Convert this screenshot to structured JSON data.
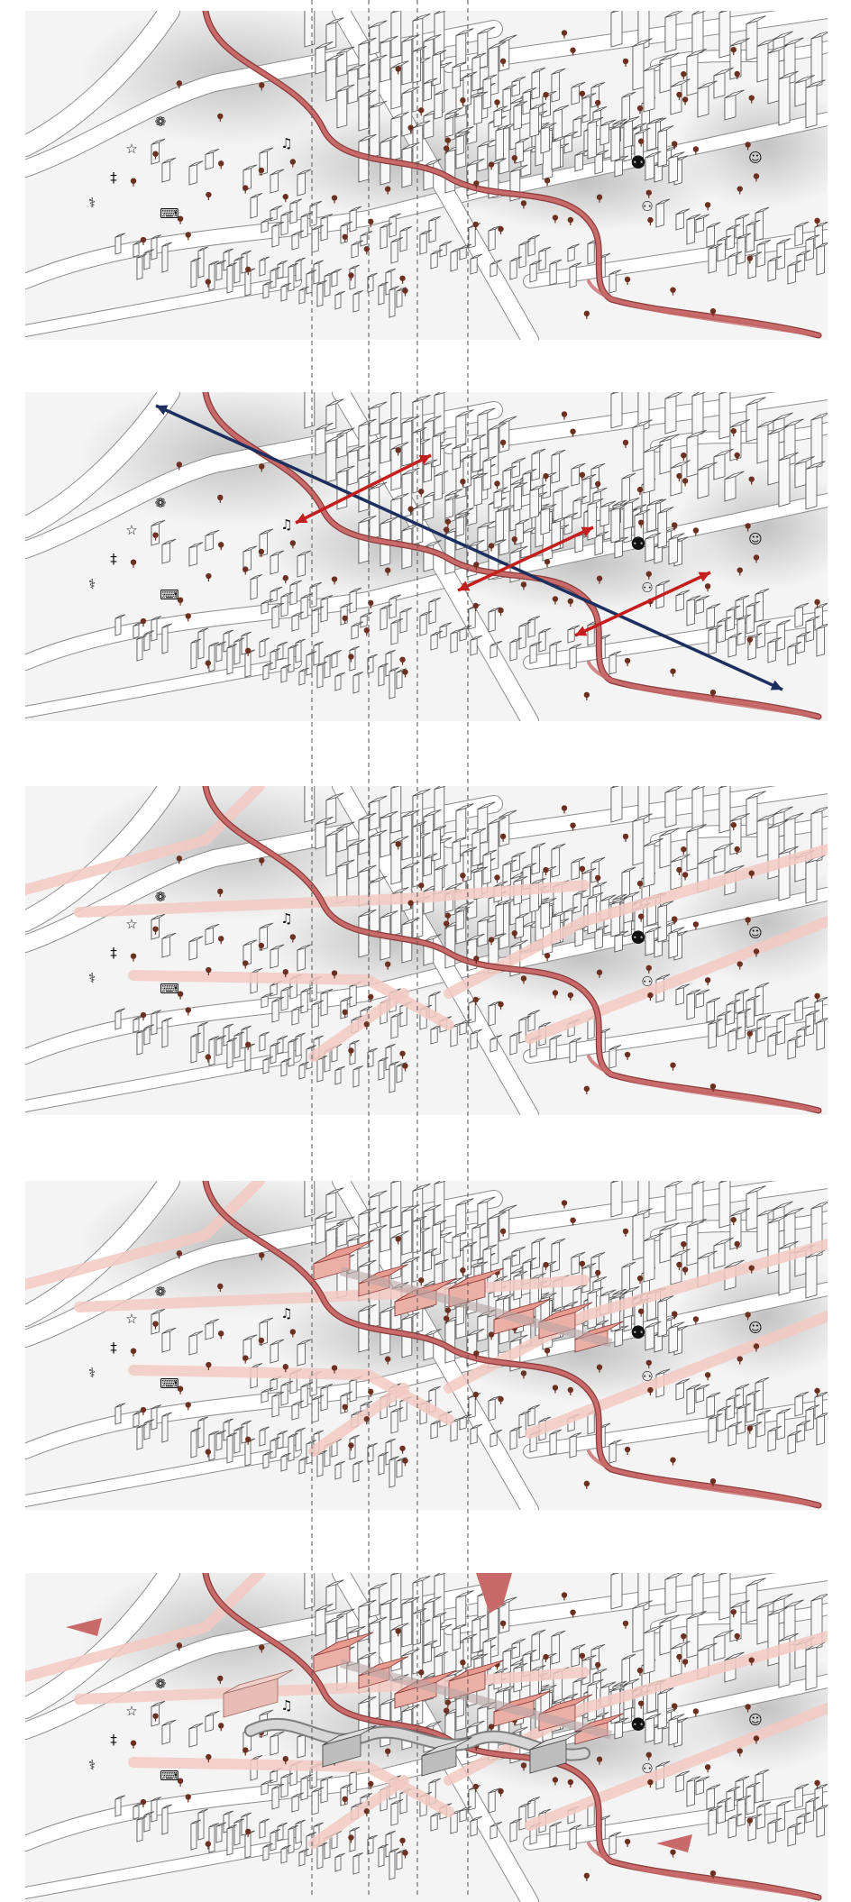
{
  "figure": {
    "stage_count": 5,
    "panels": [
      {
        "id": 1,
        "stage": "existing-context",
        "arrows": [],
        "paths_extended": false,
        "blocks": "none",
        "final_form": false
      },
      {
        "id": 2,
        "stage": "connection-analysis",
        "arrows": [
          "blue-diagonal-axis",
          "red-cross-link-1",
          "red-cross-link-2",
          "red-cross-link-3"
        ],
        "paths_extended": false,
        "blocks": "none",
        "final_form": false
      },
      {
        "id": 3,
        "stage": "path-network",
        "arrows": [],
        "paths_extended": true,
        "blocks": "none",
        "final_form": false
      },
      {
        "id": 4,
        "stage": "massing-blocks",
        "arrows": [],
        "paths_extended": true,
        "blocks": "red-massing",
        "final_form": false
      },
      {
        "id": 5,
        "stage": "final-design",
        "arrows": [],
        "paths_extended": true,
        "blocks": "red-massing",
        "final_form": true
      }
    ],
    "icons": [
      "film-reel-icon",
      "dancer-icon",
      "candles-icon",
      "stethoscope-icon",
      "piano-icon",
      "paintbrush-music-icon",
      "family-elderly-icon",
      "baby-icon",
      "child-icon"
    ]
  },
  "colors": {
    "background": "#ffffff",
    "panel": "#f4f4f4",
    "road_fill": "#ffffff",
    "road_edge": "#8c8c8c",
    "building_top": "#ffffff",
    "building_side": "#e6e6e6",
    "building_edge": "#555555",
    "river": "#c96a6a",
    "river_edge": "#8a3b3b",
    "path_pink": "#f2c9c2",
    "massing": "#e79a8e",
    "massing_dark": "#c8655a",
    "arrow_blue": "#1d2f5e",
    "arrow_red": "#c41e1e",
    "tree": "#6b3020",
    "guide": "#555555"
  }
}
